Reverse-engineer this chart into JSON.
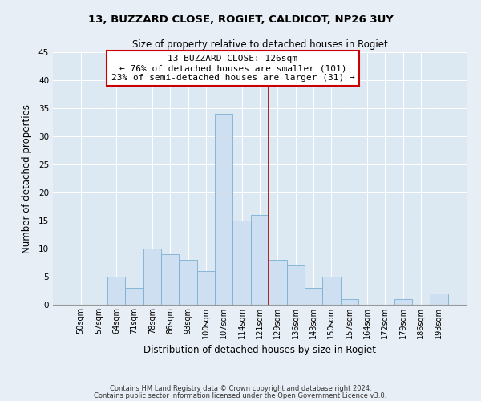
{
  "title1": "13, BUZZARD CLOSE, ROGIET, CALDICOT, NP26 3UY",
  "title2": "Size of property relative to detached houses in Rogiet",
  "xlabel": "Distribution of detached houses by size in Rogiet",
  "ylabel": "Number of detached properties",
  "bar_labels": [
    "50sqm",
    "57sqm",
    "64sqm",
    "71sqm",
    "78sqm",
    "86sqm",
    "93sqm",
    "100sqm",
    "107sqm",
    "114sqm",
    "121sqm",
    "129sqm",
    "136sqm",
    "143sqm",
    "150sqm",
    "157sqm",
    "164sqm",
    "172sqm",
    "179sqm",
    "186sqm",
    "193sqm"
  ],
  "bar_heights": [
    0,
    0,
    5,
    3,
    10,
    9,
    8,
    6,
    34,
    15,
    16,
    8,
    7,
    3,
    5,
    1,
    0,
    0,
    1,
    0,
    2
  ],
  "bar_color": "#cddff0",
  "bar_edge_color": "#7aafd4",
  "vline_x": 11.5,
  "vline_color": "#aa0000",
  "annotation_title": "13 BUZZARD CLOSE: 126sqm",
  "annotation_line1": "← 76% of detached houses are smaller (101)",
  "annotation_line2": "23% of semi-detached houses are larger (31) →",
  "annotation_box_color": "#ffffff",
  "annotation_box_edge": "#cc0000",
  "ylim": [
    0,
    45
  ],
  "yticks": [
    0,
    5,
    10,
    15,
    20,
    25,
    30,
    35,
    40,
    45
  ],
  "footer1": "Contains HM Land Registry data © Crown copyright and database right 2024.",
  "footer2": "Contains public sector information licensed under the Open Government Licence v3.0.",
  "bg_color": "#e8eef5",
  "plot_bg_color": "#dce8f2",
  "grid_color": "#ffffff"
}
